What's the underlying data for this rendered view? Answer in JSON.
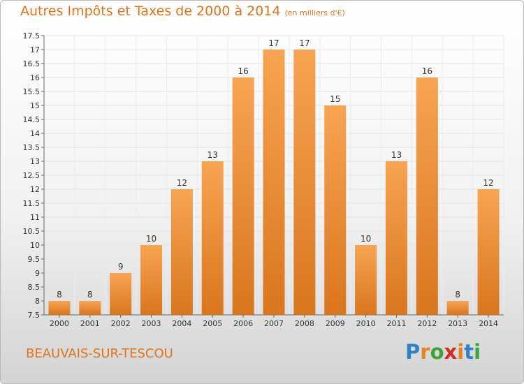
{
  "header": {
    "title": "Autres Impôts et Taxes de 2000 à 2014",
    "subtitle": "(en milliers d'€)"
  },
  "footer": {
    "commune": "BEAUVAIS-SUR-TESCOU",
    "brand_letters": [
      "P",
      "r",
      "o",
      "x",
      "i",
      "t",
      "i"
    ],
    "brand_colors": [
      "#2f82c8",
      "#e8821e",
      "#3aa537",
      "#d6291f",
      "#e8821e",
      "#2f82c8",
      "#3aa537"
    ]
  },
  "chart_data": {
    "type": "bar",
    "categories": [
      "2000",
      "2001",
      "2002",
      "2003",
      "2004",
      "2005",
      "2006",
      "2007",
      "2008",
      "2009",
      "2010",
      "2011",
      "2012",
      "2013",
      "2014"
    ],
    "values": [
      8,
      8,
      9,
      10,
      12,
      13,
      16,
      17,
      17,
      15,
      10,
      13,
      16,
      8,
      12
    ],
    "data_labels": [
      "8",
      "8",
      "9",
      "10",
      "12",
      "13",
      "16",
      "17",
      "17",
      "15",
      "10",
      "13",
      "16",
      "8",
      "12"
    ],
    "ylim": [
      7.5,
      17.5
    ],
    "y_ticks": [
      7.5,
      8,
      8.5,
      9,
      9.5,
      10,
      10.5,
      11,
      11.5,
      12,
      12.5,
      13,
      13.5,
      14,
      14.5,
      15,
      15.5,
      16,
      16.5,
      17,
      17.5
    ],
    "y_tick_labels": [
      "7.5",
      "8",
      "8.5",
      "9",
      "9.5",
      "10",
      "10.5",
      "11",
      "11.5",
      "12",
      "12.5",
      "13",
      "13.5",
      "14",
      "14.5",
      "15",
      "15.5",
      "16",
      "16.5",
      "17",
      "17.5"
    ],
    "grid": true,
    "bar_color_top": "#f7a453",
    "bar_color_bottom": "#d9761f",
    "text_color": "#333333"
  }
}
